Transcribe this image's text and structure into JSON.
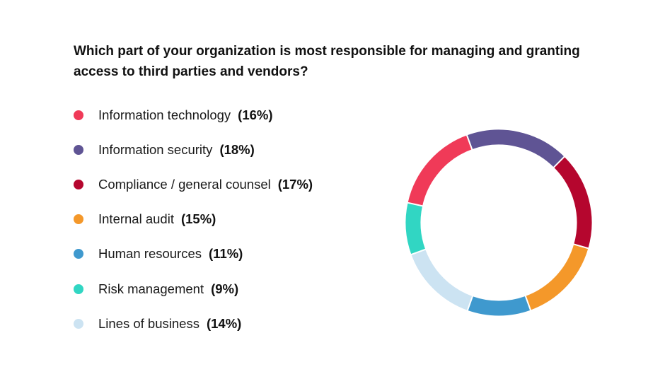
{
  "title": "Which part of your organization is most responsible for managing and granting access to third parties and vendors?",
  "chart_data": {
    "type": "pie",
    "title": "Which part of your organization is most responsible for managing and granting access to third parties and vendors?",
    "variant": "donut",
    "legend_placement": "left",
    "slices": [
      {
        "label": "Information technology",
        "value": 16,
        "value_label": "(16%)",
        "color": "#F03A58"
      },
      {
        "label": "Information security",
        "value": 18,
        "value_label": "(18%)",
        "color": "#5F5494"
      },
      {
        "label": "Compliance / general counsel",
        "value": 17,
        "value_label": "(17%)",
        "color": "#B5062E"
      },
      {
        "label": "Internal audit",
        "value": 15,
        "value_label": "(15%)",
        "color": "#F4982A"
      },
      {
        "label": "Human resources",
        "value": 11,
        "value_label": "(11%)",
        "color": "#3F99CE"
      },
      {
        "label": "Risk management",
        "value": 9,
        "value_label": "(9%)",
        "color": "#31D6C3"
      },
      {
        "label": "Lines of business",
        "value": 14,
        "value_label": "(14%)",
        "color": "#CCE3F2"
      }
    ]
  }
}
